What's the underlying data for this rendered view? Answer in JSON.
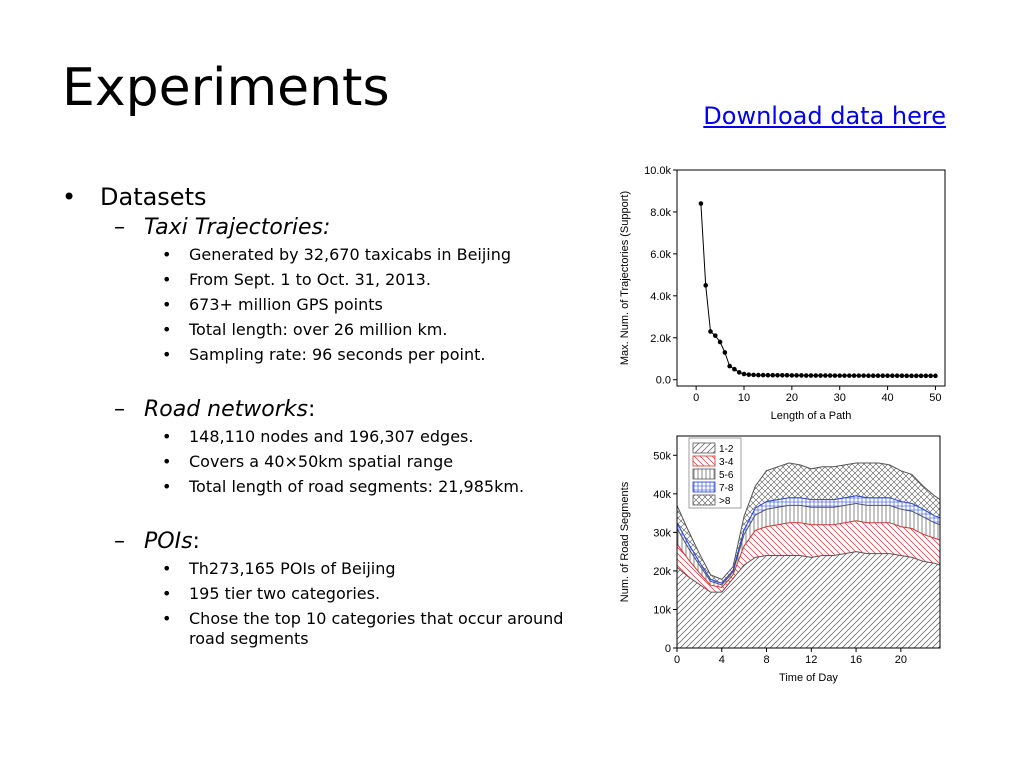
{
  "slide": {
    "title": "Experiments",
    "download_link": "Download data here"
  },
  "content": {
    "datasets_label": "Datasets",
    "taxi": {
      "label": "Taxi Trajectories:",
      "items": [
        "Generated by 32,670 taxicabs in Beijing",
        "From Sept. 1 to Oct. 31, 2013.",
        "673+ million GPS points",
        "Total length: over 26 million km.",
        "Sampling rate: 96 seconds per point."
      ]
    },
    "road": {
      "label": "Road networks",
      "suffix": ":",
      "items": [
        "148,110 nodes and 196,307 edges.",
        "Covers a 40×50km spatial range",
        "Total length of road segments: 21,985km."
      ]
    },
    "pois": {
      "label": "POIs",
      "suffix": ":",
      "items": [
        "Th273,165 POIs of Beijing",
        "195 tier two categories.",
        "Chose the top 10 categories that occur around road segments"
      ]
    }
  },
  "chart_data": [
    {
      "type": "line",
      "xlabel": "Length of a Path",
      "ylabel": "Max. Num. of Trajectories (Support)",
      "xlim": [
        -4,
        52
      ],
      "ylim": [
        -300,
        10000
      ],
      "xticks": [
        "0",
        "10",
        "20",
        "30",
        "40",
        "50"
      ],
      "xtick_values": [
        0,
        10,
        20,
        30,
        40,
        50
      ],
      "yticks": [
        "0.0",
        "2.0k",
        "4.0k",
        "6.0k",
        "8.0k",
        "10.0k"
      ],
      "ytick_values": [
        0,
        2000,
        4000,
        6000,
        8000,
        10000
      ],
      "x": [
        1,
        2,
        3,
        4,
        5,
        6,
        7,
        8,
        9,
        10,
        11,
        12,
        13,
        14,
        15,
        16,
        17,
        18,
        19,
        20,
        21,
        22,
        23,
        24,
        25,
        26,
        27,
        28,
        29,
        30,
        31,
        32,
        33,
        34,
        35,
        36,
        37,
        38,
        39,
        40,
        41,
        42,
        43,
        44,
        45,
        46,
        47,
        48,
        49,
        50
      ],
      "y": [
        8400,
        4500,
        2300,
        2100,
        1800,
        1300,
        650,
        500,
        350,
        270,
        240,
        230,
        220,
        220,
        215,
        215,
        210,
        210,
        210,
        205,
        205,
        205,
        200,
        200,
        200,
        200,
        200,
        200,
        195,
        195,
        195,
        195,
        195,
        195,
        195,
        190,
        190,
        190,
        190,
        190,
        190,
        190,
        190,
        185,
        185,
        185,
        185,
        185,
        185,
        185
      ]
    },
    {
      "type": "area",
      "stacked": true,
      "xlabel": "Time of Day",
      "ylabel": "Num. of Road Segments",
      "xlim": [
        0,
        23.5
      ],
      "ylim": [
        0,
        55000
      ],
      "xticks": [
        "0",
        "4",
        "8",
        "12",
        "16",
        "20"
      ],
      "xtick_values": [
        0,
        4,
        8,
        12,
        16,
        20
      ],
      "yticks": [
        "0",
        "10k",
        "20k",
        "30k",
        "40k",
        "50k"
      ],
      "ytick_values": [
        0,
        10000,
        20000,
        30000,
        40000,
        50000
      ],
      "legend": "top-left",
      "x": [
        0,
        1,
        2,
        3,
        4,
        5,
        6,
        7,
        8,
        9,
        10,
        11,
        12,
        13,
        14,
        15,
        16,
        17,
        18,
        19,
        20,
        21,
        22,
        23,
        23.5
      ],
      "series": [
        {
          "name": "1-2",
          "color": "#555555",
          "values": [
            21000,
            18500,
            16500,
            14500,
            14500,
            18000,
            21500,
            23500,
            24000,
            24000,
            24000,
            24000,
            23500,
            24000,
            24000,
            24500,
            25000,
            24500,
            24500,
            24500,
            24000,
            23500,
            22500,
            22000,
            21500
          ]
        },
        {
          "name": "3-4",
          "color": "#e03030",
          "values": [
            6000,
            4500,
            3000,
            1800,
            1200,
            1000,
            5000,
            7000,
            7500,
            8000,
            8500,
            8500,
            8500,
            8000,
            8000,
            8000,
            8000,
            8000,
            8000,
            8000,
            7500,
            7500,
            7000,
            6500,
            6500
          ]
        },
        {
          "name": "5-6",
          "color": "#555555",
          "values": [
            4000,
            3000,
            2000,
            1000,
            700,
            700,
            3000,
            4000,
            4500,
            4500,
            4500,
            4500,
            4500,
            4500,
            4500,
            4500,
            4500,
            4500,
            4500,
            4500,
            4500,
            4500,
            4500,
            4000,
            4000
          ]
        },
        {
          "name": "7-8",
          "color": "#2040e0",
          "values": [
            1500,
            1200,
            800,
            500,
            400,
            400,
            1200,
            1800,
            2000,
            2000,
            2000,
            2000,
            2000,
            2000,
            2000,
            2000,
            2000,
            2000,
            2000,
            2000,
            2000,
            2000,
            2000,
            1800,
            1800
          ]
        },
        {
          "name": ">8",
          "color": "#555555",
          "values": [
            4500,
            3300,
            2200,
            1200,
            1000,
            1000,
            3500,
            5700,
            8000,
            8500,
            9000,
            8500,
            8000,
            8500,
            8500,
            8500,
            8500,
            9000,
            9000,
            8500,
            8000,
            7500,
            6000,
            5200,
            4700
          ]
        }
      ]
    }
  ]
}
